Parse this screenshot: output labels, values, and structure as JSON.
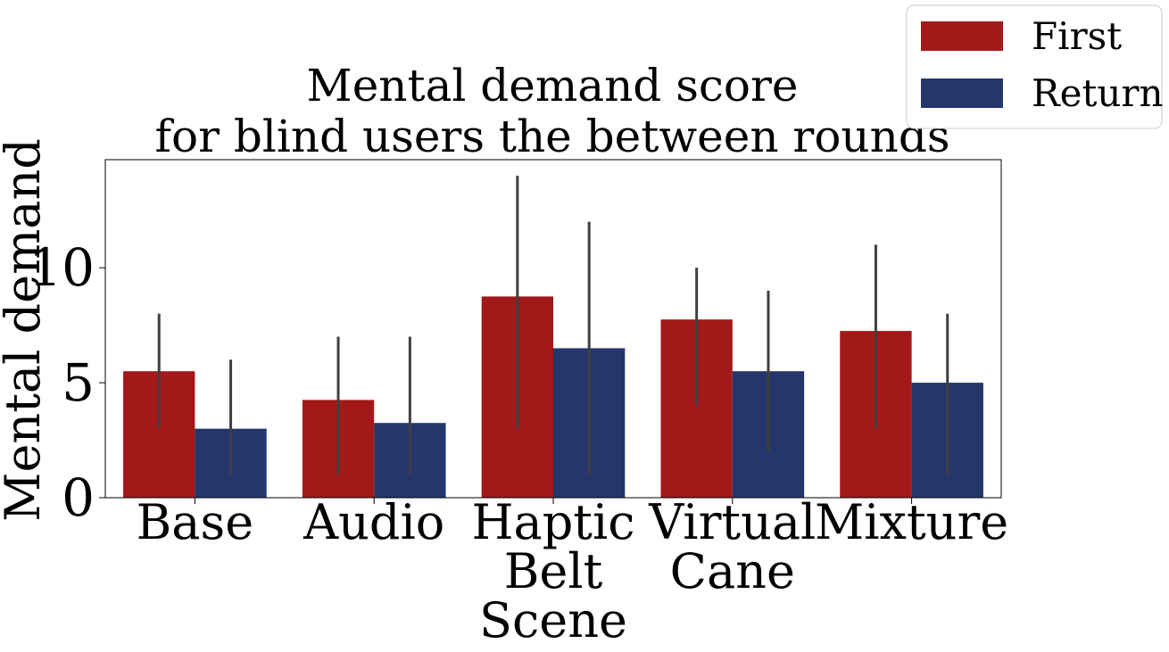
{
  "chart_data": {
    "type": "bar",
    "title": [
      "Mental demand score",
      "for blind users the between rounds"
    ],
    "xlabel": "",
    "ylabel": "Mental demand",
    "categories": [
      [
        "Base"
      ],
      [
        "Audio"
      ],
      [
        "Haptic",
        "Belt",
        "Scene"
      ],
      [
        "Virtual",
        "Cane"
      ],
      [
        "Mixture"
      ]
    ],
    "ylim": [
      0,
      14.7
    ],
    "yticks": [
      0,
      5,
      10
    ],
    "grid": false,
    "legend_position": "top-right",
    "series": [
      {
        "name": "First",
        "color": "#a31818",
        "values": [
          5.5,
          4.25,
          8.75,
          7.75,
          7.25
        ],
        "error_low": [
          3,
          1,
          3,
          4,
          3
        ],
        "error_high": [
          8,
          7,
          14,
          10,
          11
        ]
      },
      {
        "name": "Return",
        "color": "#24366b",
        "values": [
          3,
          3.25,
          6.5,
          5.5,
          5
        ],
        "error_low": [
          1,
          1,
          1,
          2,
          1
        ],
        "error_high": [
          6,
          7,
          12,
          9,
          8
        ]
      }
    ]
  }
}
